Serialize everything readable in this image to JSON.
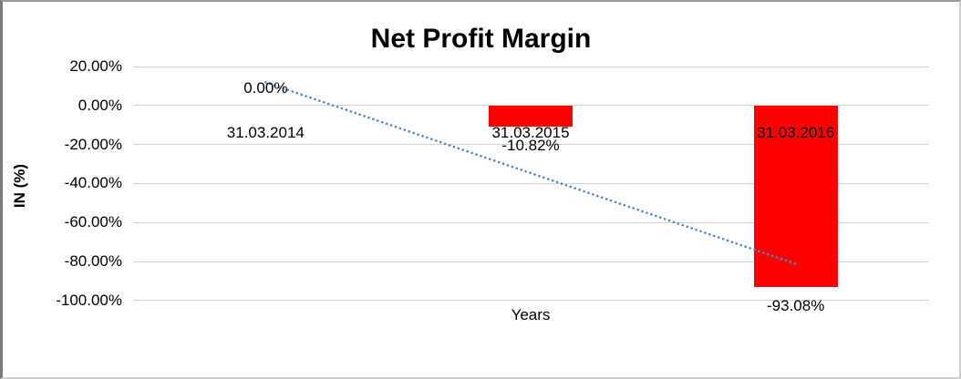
{
  "chart_data": {
    "type": "bar",
    "title": "Net Profit Margin",
    "xlabel": "Years",
    "ylabel": "IN (%)",
    "categories": [
      "31.03.2014",
      "31.03.2015",
      "31.03.2016"
    ],
    "values": [
      0.0,
      -10.82,
      -93.08
    ],
    "data_labels": [
      "0.00%",
      "-10.82%",
      "-93.08%"
    ],
    "yticks": [
      "20.00%",
      "0.00%",
      "-20.00%",
      "-40.00%",
      "-60.00%",
      "-80.00%",
      "-100.00%"
    ],
    "ylim": [
      -100,
      20
    ],
    "ytick_step": 20,
    "grid": true,
    "legend": "none",
    "bar_color": "#FF0000",
    "gridline_color": "#D2D2D2",
    "trendline": {
      "kind": "linear",
      "line_style": "dotted",
      "color": "#4E87C7",
      "endpoints_pct": [
        11.9,
        -81.2
      ]
    }
  }
}
